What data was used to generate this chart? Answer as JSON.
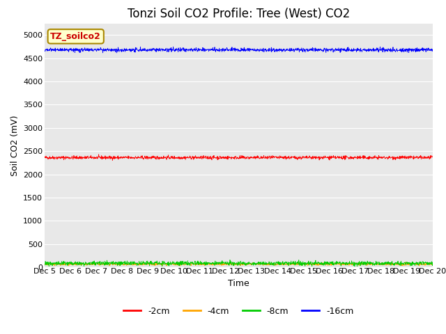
{
  "title": "Tonzi Soil CO2 Profile: Tree (West) CO2",
  "ylabel": "Soil CO2 (mV)",
  "xlabel": "Time",
  "watermark": "TZ_soilco2",
  "ylim": [
    0,
    5250
  ],
  "yticks": [
    0,
    500,
    1000,
    1500,
    2000,
    2500,
    3000,
    3500,
    4000,
    4500,
    5000
  ],
  "n_points": 1500,
  "lines": {
    "-2cm": {
      "color": "#ff0000",
      "mean": 2360,
      "noise": 18
    },
    "-4cm": {
      "color": "#ffa500",
      "mean": 65,
      "noise": 12
    },
    "-8cm": {
      "color": "#00cc00",
      "mean": 85,
      "noise": 22
    },
    "-16cm": {
      "color": "#0000ff",
      "mean": 4680,
      "noise": 20
    }
  },
  "xtick_labels": [
    "Dec 5",
    "Dec 6",
    "Dec 7",
    "Dec 8",
    "Dec 9",
    "Dec 10",
    "Dec 11",
    "Dec 12",
    "Dec 13",
    "Dec 14",
    "Dec 15",
    "Dec 16",
    "Dec 17",
    "Dec 18",
    "Dec 19",
    "Dec 20"
  ],
  "bg_color": "#e8e8e8",
  "title_fontsize": 12,
  "axis_label_fontsize": 9,
  "tick_fontsize": 8,
  "legend_fontsize": 9
}
